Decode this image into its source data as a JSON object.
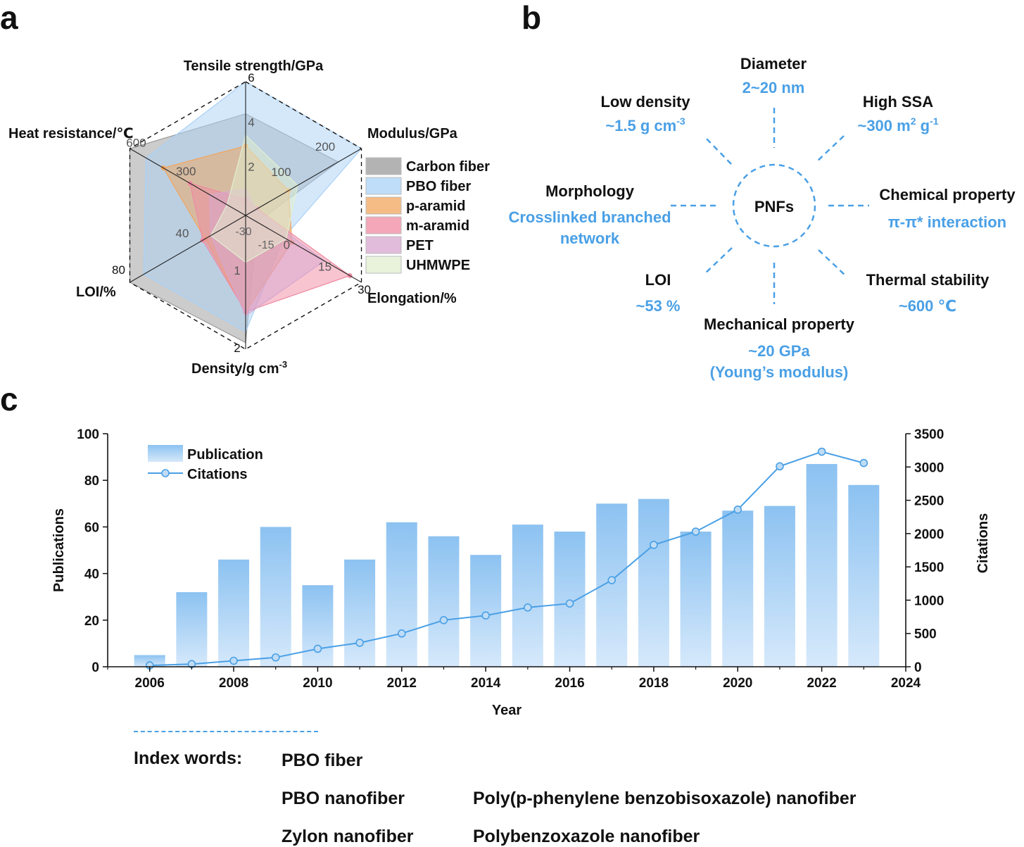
{
  "panels": {
    "a": "a",
    "b": "b",
    "c": "c"
  },
  "colors": {
    "accent": "#4aa0e6",
    "bar_top": "#8cc2f1",
    "bar_bottom": "#d6e9fb",
    "line": "#4aa0e6"
  },
  "chart_data": [
    {
      "type": "radar",
      "panel": "a",
      "axes": [
        {
          "name": "Tensile strength/GPa",
          "ticks": [
            "2",
            "4",
            "6"
          ],
          "range": [
            0,
            6
          ]
        },
        {
          "name": "Modulus/GPa",
          "ticks": [
            "100",
            "200"
          ],
          "range": [
            0,
            300
          ]
        },
        {
          "name": "Elongation/%",
          "ticks": [
            "0",
            "15",
            "30"
          ],
          "range": [
            -15,
            30
          ]
        },
        {
          "name": "Density/g cm-3",
          "ticks": [
            "1",
            "2"
          ],
          "range": [
            0.6,
            2
          ]
        },
        {
          "name": "LOI/%",
          "ticks": [
            "40",
            "80"
          ],
          "range": [
            0,
            80
          ]
        },
        {
          "name": "Heat resistance/℃",
          "ticks": [
            "300",
            "600"
          ],
          "range": [
            0,
            800
          ]
        }
      ],
      "extra_ticks": [
        "-30",
        "-15"
      ],
      "series": [
        {
          "name": "Carbon fiber",
          "color": "#9a9a9a",
          "values": [
            0.76,
            0.8,
            0.1,
            0.95,
            1.0,
            1.0
          ]
        },
        {
          "name": "PBO fiber",
          "color": "#a9d1f6",
          "values": [
            1.0,
            1.0,
            0.33,
            0.87,
            0.88,
            0.86
          ]
        },
        {
          "name": "p-aramid",
          "color": "#f2a55d",
          "values": [
            0.52,
            0.37,
            0.4,
            0.72,
            0.35,
            0.71
          ]
        },
        {
          "name": "m-aramid",
          "color": "#f08aa2",
          "values": [
            0.12,
            0.1,
            0.9,
            0.72,
            0.37,
            0.48
          ]
        },
        {
          "name": "PET",
          "color": "#d7a7cf",
          "values": [
            0.2,
            0.09,
            0.68,
            0.75,
            0.3,
            0.31
          ]
        },
        {
          "name": "UHMWPE",
          "color": "#e2efd0",
          "values": [
            0.6,
            0.45,
            0.35,
            0.35,
            0.3,
            0.16
          ]
        }
      ]
    },
    {
      "type": "bar",
      "panel": "c",
      "x": [
        2006,
        2007,
        2008,
        2009,
        2010,
        2011,
        2012,
        2013,
        2014,
        2015,
        2016,
        2017,
        2018,
        2019,
        2020,
        2021,
        2022,
        2023
      ],
      "series": [
        {
          "name": "Publication",
          "axis": "left",
          "values": [
            5,
            32,
            46,
            60,
            35,
            46,
            62,
            56,
            48,
            61,
            58,
            70,
            72,
            58,
            67,
            69,
            87,
            78
          ]
        },
        {
          "name": "Citations",
          "axis": "right",
          "type": "line",
          "values": [
            20,
            40,
            90,
            140,
            270,
            360,
            500,
            700,
            770,
            890,
            950,
            1300,
            1830,
            2030,
            2360,
            3010,
            3230,
            3060
          ]
        }
      ],
      "xlabel": "Year",
      "ylabel": "Publications",
      "y2label": "Citations",
      "xlim": [
        2005,
        2024
      ],
      "ylim": [
        0,
        100
      ],
      "y2lim": [
        0,
        3500
      ],
      "xticks": [
        "2006",
        "2008",
        "2010",
        "2012",
        "2014",
        "2016",
        "2018",
        "2020",
        "2022",
        "2024"
      ],
      "yticks": [
        "0",
        "20",
        "40",
        "60",
        "80",
        "100"
      ],
      "y2ticks": [
        "0",
        "500",
        "1000",
        "1500",
        "2000",
        "2500",
        "3000",
        "3500"
      ],
      "legend": "top-left"
    }
  ],
  "diagram": {
    "center": "PNFs",
    "items": [
      {
        "key": "diameter",
        "title": "Diameter",
        "value": "2~20 nm"
      },
      {
        "key": "high-ssa",
        "title": "High SSA",
        "value": "~300 m",
        "sup": "2",
        "value2": " g",
        "sup2": "-1"
      },
      {
        "key": "chemical",
        "title": "Chemical property",
        "value": "π-π* interaction"
      },
      {
        "key": "thermal",
        "title": "Thermal stability",
        "value": "~600 ℃"
      },
      {
        "key": "mechanical",
        "title": "Mechanical property",
        "value": "~20 GPa",
        "value_line2": "(Young’s modulus)"
      },
      {
        "key": "loi",
        "title": "LOI",
        "value": "~53 %"
      },
      {
        "key": "morphology",
        "title": "Morphology",
        "value": "Crosslinked branched",
        "value_line2": "network"
      },
      {
        "key": "low-density",
        "title": "Low density",
        "value": "~1.5 g cm",
        "sup": "-3"
      }
    ]
  },
  "index_words": {
    "label": "Index words:",
    "items": [
      "PBO fiber",
      "PBO nanofiber",
      "Poly(p-phenylene benzobisoxazole) nanofiber",
      "Zylon nanofiber",
      "Polybenzoxazole nanofiber"
    ]
  }
}
